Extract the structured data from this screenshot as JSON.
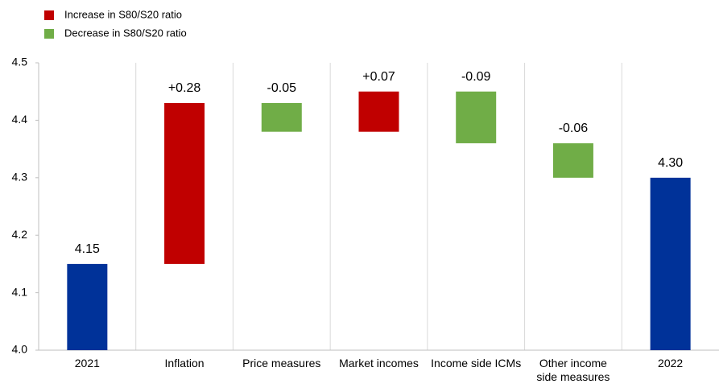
{
  "chart_data": {
    "type": "waterfall",
    "categories": [
      "2021",
      "Inflation",
      "Price measures",
      "Market incomes",
      "Income side ICMs",
      "Other income side measures",
      "2022"
    ],
    "values": [
      4.15,
      0.28,
      -0.05,
      0.07,
      -0.09,
      -0.06,
      4.3
    ],
    "value_labels": [
      "4.15",
      "+0.28",
      "-0.05",
      "+0.07",
      "-0.09",
      "-0.06",
      "4.30"
    ],
    "is_total": [
      true,
      false,
      false,
      false,
      false,
      false,
      true
    ],
    "increase": {
      "name": "Increase in S80/S20 ratio",
      "color": "#c00000"
    },
    "decrease": {
      "name": "Decrease in S80/S20 ratio",
      "color": "#70ad47"
    },
    "total_color": "#003299",
    "ylim": [
      4.0,
      4.5
    ],
    "yticks": [
      {
        "value": 4.0,
        "label": "4.0"
      },
      4.1,
      4.2,
      4.3,
      4.4,
      4.5
    ]
  }
}
